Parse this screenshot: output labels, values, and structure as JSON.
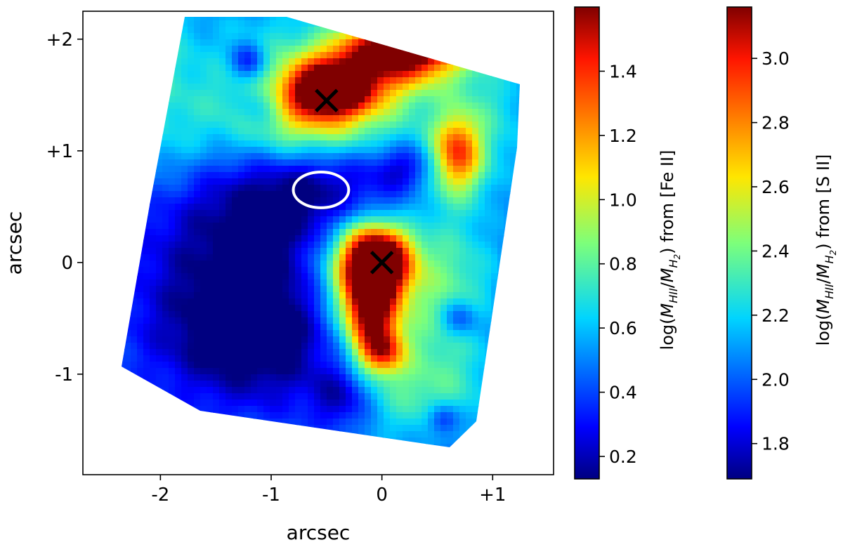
{
  "chart_data": {
    "type": "heatmap",
    "xlabel": "arcsec",
    "ylabel": "arcsec",
    "xlim": [
      -2.7,
      1.55
    ],
    "ylim": [
      -1.9,
      2.25
    ],
    "x_ticks": [
      {
        "value": -2,
        "label": "-2"
      },
      {
        "value": -1,
        "label": "-1"
      },
      {
        "value": 0,
        "label": "0"
      },
      {
        "value": 1,
        "label": "+1"
      }
    ],
    "y_ticks": [
      {
        "value": -1,
        "label": "-1"
      },
      {
        "value": 0,
        "label": "0"
      },
      {
        "value": 1,
        "label": "+1"
      },
      {
        "value": 2,
        "label": "+2"
      }
    ],
    "colormap": "jet",
    "markers": [
      {
        "type": "x",
        "x": -0.5,
        "y": 1.45,
        "color": "#000000"
      },
      {
        "type": "x",
        "x": 0.0,
        "y": 0.0,
        "color": "#000000"
      }
    ],
    "ellipse": {
      "cx": -0.55,
      "cy": 0.65,
      "rx": 0.25,
      "ry": 0.16,
      "color": "#ffffff"
    },
    "colorbars": [
      {
        "range": [
          0.13,
          1.6
        ],
        "ticks": [
          0.2,
          0.4,
          0.6,
          0.8,
          1.0,
          1.2,
          1.4
        ],
        "tick_labels": [
          "0.2",
          "0.4",
          "0.6",
          "0.8",
          "1.0",
          "1.2",
          "1.4"
        ],
        "label_prefix": "log(",
        "label_math": "M_HII/M_H2",
        "label_suffix": ") from [Fe II]"
      },
      {
        "range": [
          1.69,
          3.16
        ],
        "ticks": [
          1.8,
          2.0,
          2.2,
          2.4,
          2.6,
          2.8,
          3.0
        ],
        "tick_labels": [
          "1.8",
          "2.0",
          "2.2",
          "2.4",
          "2.6",
          "2.8",
          "3.0"
        ],
        "label_prefix": "log(",
        "label_math": "M_HII/M_H2",
        "label_suffix": ") from [S II]"
      }
    ],
    "blobs": [
      {
        "x": -0.48,
        "y": 1.55,
        "sx": 0.25,
        "sy": 0.16,
        "a": 1.1
      },
      {
        "x": -0.22,
        "y": 1.72,
        "sx": 0.35,
        "sy": 0.22,
        "a": 0.55
      },
      {
        "x": 0.2,
        "y": 1.95,
        "sx": 0.35,
        "sy": 0.16,
        "a": 0.85
      },
      {
        "x": 0.35,
        "y": 1.85,
        "sx": 0.3,
        "sy": 0.2,
        "a": 0.4
      },
      {
        "x": 0.68,
        "y": 1.0,
        "sx": 0.14,
        "sy": 0.22,
        "a": 0.65
      },
      {
        "x": 0.55,
        "y": 0.8,
        "sx": 0.3,
        "sy": 0.25,
        "a": 0.25
      },
      {
        "x": -0.02,
        "y": 0.02,
        "sx": 0.2,
        "sy": 0.2,
        "a": 1.2
      },
      {
        "x": -0.1,
        "y": -0.4,
        "sx": 0.16,
        "sy": 0.3,
        "a": 1.0
      },
      {
        "x": 0.02,
        "y": -0.8,
        "sx": 0.13,
        "sy": 0.13,
        "a": 0.55
      },
      {
        "x": -0.05,
        "y": -0.3,
        "sx": 0.38,
        "sy": 0.55,
        "a": 0.4
      },
      {
        "x": -1.05,
        "y": 1.5,
        "sx": 0.4,
        "sy": 0.55,
        "a": 0.3
      },
      {
        "x": 0.1,
        "y": 1.6,
        "sx": 0.6,
        "sy": 0.5,
        "a": 0.2
      },
      {
        "x": 0.65,
        "y": -0.2,
        "sx": 0.3,
        "sy": 0.6,
        "a": 0.3
      },
      {
        "x": 0.35,
        "y": -1.2,
        "sx": 0.45,
        "sy": 0.3,
        "a": 0.25
      },
      {
        "x": -1.9,
        "y": 1.1,
        "sx": 0.4,
        "sy": 0.4,
        "a": 0.22
      },
      {
        "x": -2.05,
        "y": 1.9,
        "sx": 0.3,
        "sy": 0.4,
        "a": 0.22
      },
      {
        "x": 0.95,
        "y": 1.3,
        "sx": 0.3,
        "sy": 0.4,
        "a": 0.2
      },
      {
        "x": -0.3,
        "y": 0.05,
        "sx": 0.25,
        "sy": 0.35,
        "a": 0.3
      },
      {
        "x": -0.55,
        "y": 1.25,
        "sx": 0.45,
        "sy": 0.25,
        "a": 0.45
      }
    ],
    "cold": [
      {
        "x": -0.55,
        "y": 0.65,
        "sx": 0.7,
        "sy": 0.35,
        "a": 0.35
      },
      {
        "x": -1.3,
        "y": 0.0,
        "sx": 0.7,
        "sy": 0.7,
        "a": 0.3
      },
      {
        "x": -1.1,
        "y": -0.7,
        "sx": 0.6,
        "sy": 0.4,
        "a": 0.3
      },
      {
        "x": -1.2,
        "y": 1.8,
        "sx": 0.12,
        "sy": 0.12,
        "a": 0.35
      },
      {
        "x": 0.7,
        "y": -0.5,
        "sx": 0.12,
        "sy": 0.12,
        "a": 0.3
      },
      {
        "x": 0.55,
        "y": -1.4,
        "sx": 0.1,
        "sy": 0.1,
        "a": 0.3
      },
      {
        "x": -1.1,
        "y": 1.4,
        "sx": 0.15,
        "sy": 0.15,
        "a": 0.25
      },
      {
        "x": -0.35,
        "y": -1.2,
        "sx": 0.2,
        "sy": 0.2,
        "a": 0.3
      },
      {
        "x": 0.25,
        "y": 0.85,
        "sx": 0.2,
        "sy": 0.15,
        "a": 0.3
      }
    ],
    "base_value": 0.45
  }
}
